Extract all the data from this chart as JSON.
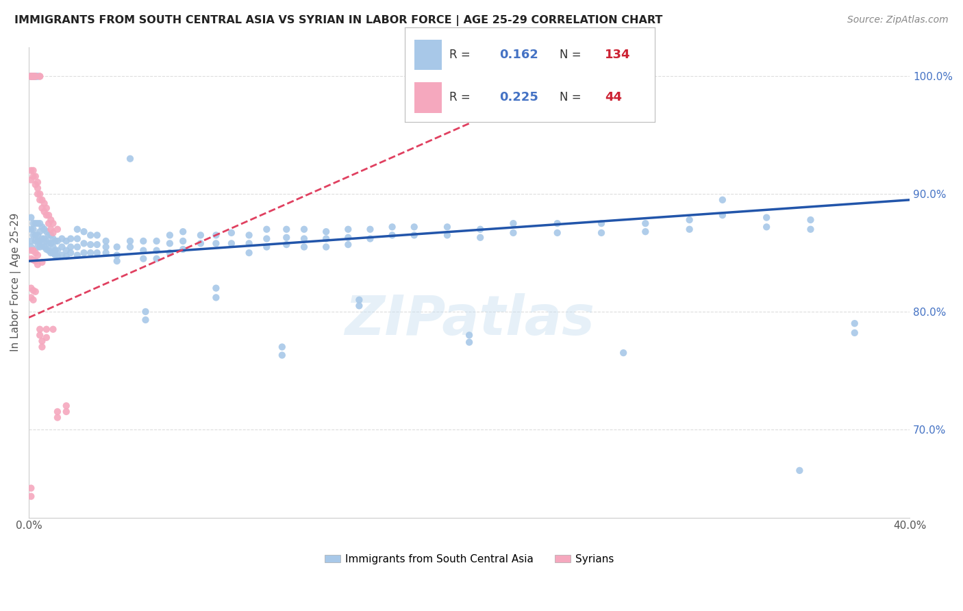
{
  "title": "IMMIGRANTS FROM SOUTH CENTRAL ASIA VS SYRIAN IN LABOR FORCE | AGE 25-29 CORRELATION CHART",
  "source": "Source: ZipAtlas.com",
  "ylabel": "In Labor Force | Age 25-29",
  "xlim": [
    0.0,
    0.4
  ],
  "ylim": [
    0.625,
    1.025
  ],
  "xticks": [
    0.0,
    0.1,
    0.2,
    0.3,
    0.4
  ],
  "xtick_labels": [
    "0.0%",
    "",
    "",
    "",
    "40.0%"
  ],
  "ytick_positions": [
    0.7,
    0.8,
    0.9,
    1.0
  ],
  "ytick_labels": [
    "70.0%",
    "80.0%",
    "90.0%",
    "100.0%"
  ],
  "blue_color": "#a8c8e8",
  "pink_color": "#f5a8be",
  "blue_line_color": "#2255aa",
  "pink_line_color": "#e04060",
  "legend_R_color": "#4472c4",
  "legend_N_color": "#cc2233",
  "grid_color": "#dddddd",
  "background_color": "#ffffff",
  "watermark_text": "ZIPatlas",
  "blue_R": 0.162,
  "blue_N": 134,
  "pink_R": 0.225,
  "pink_N": 44,
  "blue_trend_x0": 0.0,
  "blue_trend_y0": 0.843,
  "blue_trend_x1": 0.4,
  "blue_trend_y1": 0.895,
  "pink_trend_x0": 0.0,
  "pink_trend_y0": 0.795,
  "pink_trend_x1": 0.2,
  "pink_trend_y1": 0.96,
  "blue_scatter": [
    [
      0.001,
      1.0
    ],
    [
      0.001,
      1.0
    ],
    [
      0.001,
      1.0
    ],
    [
      0.001,
      1.0
    ],
    [
      0.002,
      1.0
    ],
    [
      0.002,
      1.0
    ],
    [
      0.002,
      1.0
    ],
    [
      0.003,
      1.0
    ],
    [
      0.003,
      1.0
    ],
    [
      0.003,
      1.0
    ],
    [
      0.004,
      1.0
    ],
    [
      0.004,
      1.0
    ],
    [
      0.001,
      0.88
    ],
    [
      0.001,
      0.87
    ],
    [
      0.001,
      0.86
    ],
    [
      0.001,
      0.855
    ],
    [
      0.002,
      0.875
    ],
    [
      0.002,
      0.87
    ],
    [
      0.002,
      0.865
    ],
    [
      0.003,
      0.875
    ],
    [
      0.003,
      0.865
    ],
    [
      0.003,
      0.86
    ],
    [
      0.004,
      0.875
    ],
    [
      0.004,
      0.865
    ],
    [
      0.004,
      0.86
    ],
    [
      0.004,
      0.855
    ],
    [
      0.005,
      0.875
    ],
    [
      0.005,
      0.868
    ],
    [
      0.005,
      0.86
    ],
    [
      0.005,
      0.855
    ],
    [
      0.006,
      0.872
    ],
    [
      0.006,
      0.862
    ],
    [
      0.006,
      0.857
    ],
    [
      0.007,
      0.87
    ],
    [
      0.007,
      0.862
    ],
    [
      0.007,
      0.855
    ],
    [
      0.008,
      0.868
    ],
    [
      0.008,
      0.86
    ],
    [
      0.008,
      0.853
    ],
    [
      0.009,
      0.865
    ],
    [
      0.009,
      0.858
    ],
    [
      0.009,
      0.852
    ],
    [
      0.01,
      0.865
    ],
    [
      0.01,
      0.858
    ],
    [
      0.01,
      0.85
    ],
    [
      0.011,
      0.862
    ],
    [
      0.011,
      0.855
    ],
    [
      0.011,
      0.85
    ],
    [
      0.012,
      0.86
    ],
    [
      0.012,
      0.852
    ],
    [
      0.012,
      0.848
    ],
    [
      0.013,
      0.86
    ],
    [
      0.013,
      0.852
    ],
    [
      0.013,
      0.847
    ],
    [
      0.015,
      0.862
    ],
    [
      0.015,
      0.855
    ],
    [
      0.015,
      0.848
    ],
    [
      0.017,
      0.86
    ],
    [
      0.017,
      0.852
    ],
    [
      0.017,
      0.847
    ],
    [
      0.019,
      0.862
    ],
    [
      0.019,
      0.855
    ],
    [
      0.019,
      0.85
    ],
    [
      0.022,
      0.87
    ],
    [
      0.022,
      0.862
    ],
    [
      0.022,
      0.855
    ],
    [
      0.022,
      0.848
    ],
    [
      0.025,
      0.868
    ],
    [
      0.025,
      0.858
    ],
    [
      0.025,
      0.85
    ],
    [
      0.028,
      0.865
    ],
    [
      0.028,
      0.857
    ],
    [
      0.028,
      0.85
    ],
    [
      0.031,
      0.865
    ],
    [
      0.031,
      0.857
    ],
    [
      0.031,
      0.85
    ],
    [
      0.035,
      0.86
    ],
    [
      0.035,
      0.855
    ],
    [
      0.035,
      0.85
    ],
    [
      0.04,
      0.855
    ],
    [
      0.04,
      0.848
    ],
    [
      0.04,
      0.843
    ],
    [
      0.046,
      0.93
    ],
    [
      0.046,
      0.86
    ],
    [
      0.046,
      0.855
    ],
    [
      0.052,
      0.86
    ],
    [
      0.052,
      0.852
    ],
    [
      0.052,
      0.845
    ],
    [
      0.058,
      0.86
    ],
    [
      0.058,
      0.852
    ],
    [
      0.058,
      0.845
    ],
    [
      0.064,
      0.865
    ],
    [
      0.064,
      0.858
    ],
    [
      0.064,
      0.85
    ],
    [
      0.07,
      0.868
    ],
    [
      0.07,
      0.86
    ],
    [
      0.07,
      0.853
    ],
    [
      0.078,
      0.865
    ],
    [
      0.078,
      0.858
    ],
    [
      0.085,
      0.865
    ],
    [
      0.085,
      0.858
    ],
    [
      0.092,
      0.867
    ],
    [
      0.092,
      0.858
    ],
    [
      0.1,
      0.865
    ],
    [
      0.1,
      0.858
    ],
    [
      0.1,
      0.85
    ],
    [
      0.108,
      0.87
    ],
    [
      0.108,
      0.862
    ],
    [
      0.108,
      0.855
    ],
    [
      0.117,
      0.87
    ],
    [
      0.117,
      0.863
    ],
    [
      0.117,
      0.857
    ],
    [
      0.125,
      0.87
    ],
    [
      0.125,
      0.862
    ],
    [
      0.125,
      0.855
    ],
    [
      0.135,
      0.868
    ],
    [
      0.135,
      0.862
    ],
    [
      0.135,
      0.855
    ],
    [
      0.145,
      0.87
    ],
    [
      0.145,
      0.863
    ],
    [
      0.145,
      0.857
    ],
    [
      0.155,
      0.87
    ],
    [
      0.155,
      0.862
    ],
    [
      0.165,
      0.872
    ],
    [
      0.165,
      0.865
    ],
    [
      0.175,
      0.872
    ],
    [
      0.175,
      0.865
    ],
    [
      0.19,
      0.872
    ],
    [
      0.19,
      0.865
    ],
    [
      0.205,
      0.87
    ],
    [
      0.205,
      0.863
    ],
    [
      0.22,
      0.875
    ],
    [
      0.22,
      0.867
    ],
    [
      0.24,
      0.875
    ],
    [
      0.24,
      0.867
    ],
    [
      0.26,
      0.875
    ],
    [
      0.26,
      0.867
    ],
    [
      0.28,
      0.875
    ],
    [
      0.28,
      0.868
    ],
    [
      0.3,
      0.878
    ],
    [
      0.3,
      0.87
    ],
    [
      0.315,
      0.895
    ],
    [
      0.315,
      0.882
    ],
    [
      0.335,
      0.88
    ],
    [
      0.335,
      0.872
    ],
    [
      0.355,
      0.878
    ],
    [
      0.355,
      0.87
    ],
    [
      0.375,
      0.79
    ],
    [
      0.375,
      0.782
    ],
    [
      0.15,
      0.81
    ],
    [
      0.15,
      0.805
    ],
    [
      0.2,
      0.78
    ],
    [
      0.2,
      0.774
    ],
    [
      0.085,
      0.82
    ],
    [
      0.085,
      0.812
    ],
    [
      0.053,
      0.8
    ],
    [
      0.053,
      0.793
    ],
    [
      0.115,
      0.77
    ],
    [
      0.115,
      0.763
    ],
    [
      0.27,
      0.765
    ],
    [
      0.35,
      0.665
    ]
  ],
  "pink_scatter": [
    [
      0.001,
      1.0
    ],
    [
      0.001,
      1.0
    ],
    [
      0.001,
      1.0
    ],
    [
      0.001,
      1.0
    ],
    [
      0.002,
      1.0
    ],
    [
      0.002,
      1.0
    ],
    [
      0.002,
      1.0
    ],
    [
      0.003,
      1.0
    ],
    [
      0.003,
      1.0
    ],
    [
      0.005,
      1.0
    ],
    [
      0.005,
      1.0
    ],
    [
      0.001,
      0.92
    ],
    [
      0.001,
      0.912
    ],
    [
      0.002,
      0.92
    ],
    [
      0.002,
      0.915
    ],
    [
      0.003,
      0.915
    ],
    [
      0.003,
      0.908
    ],
    [
      0.004,
      0.91
    ],
    [
      0.004,
      0.905
    ],
    [
      0.004,
      0.9
    ],
    [
      0.005,
      0.9
    ],
    [
      0.005,
      0.895
    ],
    [
      0.006,
      0.895
    ],
    [
      0.006,
      0.888
    ],
    [
      0.007,
      0.892
    ],
    [
      0.007,
      0.885
    ],
    [
      0.008,
      0.888
    ],
    [
      0.008,
      0.882
    ],
    [
      0.009,
      0.882
    ],
    [
      0.009,
      0.875
    ],
    [
      0.01,
      0.878
    ],
    [
      0.01,
      0.87
    ],
    [
      0.011,
      0.875
    ],
    [
      0.011,
      0.867
    ],
    [
      0.013,
      0.87
    ],
    [
      0.001,
      0.852
    ],
    [
      0.001,
      0.845
    ],
    [
      0.002,
      0.852
    ],
    [
      0.002,
      0.844
    ],
    [
      0.003,
      0.85
    ],
    [
      0.003,
      0.843
    ],
    [
      0.004,
      0.848
    ],
    [
      0.004,
      0.84
    ],
    [
      0.006,
      0.842
    ],
    [
      0.001,
      0.82
    ],
    [
      0.001,
      0.812
    ],
    [
      0.002,
      0.818
    ],
    [
      0.002,
      0.81
    ],
    [
      0.003,
      0.817
    ],
    [
      0.005,
      0.785
    ],
    [
      0.005,
      0.78
    ],
    [
      0.006,
      0.775
    ],
    [
      0.006,
      0.77
    ],
    [
      0.008,
      0.785
    ],
    [
      0.008,
      0.778
    ],
    [
      0.011,
      0.785
    ],
    [
      0.013,
      0.715
    ],
    [
      0.013,
      0.71
    ],
    [
      0.017,
      0.72
    ],
    [
      0.017,
      0.715
    ],
    [
      0.001,
      0.65
    ],
    [
      0.001,
      0.643
    ]
  ]
}
